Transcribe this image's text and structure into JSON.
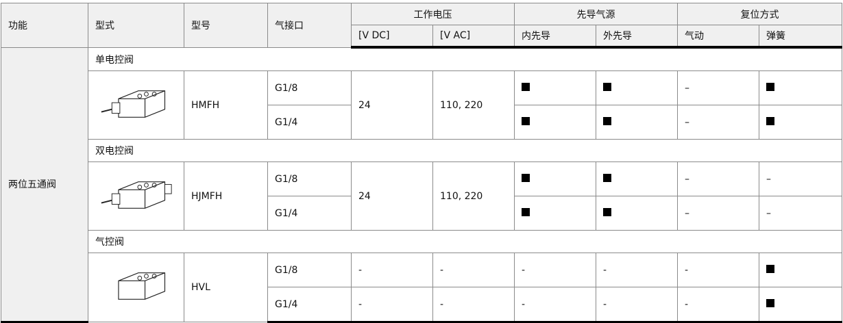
{
  "header": {
    "function": "功能",
    "type": "型式",
    "model": "型号",
    "port": "气接口",
    "voltage": "工作电压",
    "vdc": "[V DC]",
    "vac": "[V AC]",
    "pilot": "先导气源",
    "pilot_int": "内先导",
    "pilot_ext": "外先导",
    "reset": "复位方式",
    "reset_air": "气动",
    "reset_spring": "弹簧"
  },
  "function_value": "两位五通阀",
  "sections": [
    {
      "title": "单电控阀",
      "image": "single-solenoid-valve",
      "model": "HMFH",
      "vdc": "24",
      "vac": "110, 220",
      "rows": [
        {
          "port": "G1/8",
          "int": "■",
          "ext": "■",
          "air": "–",
          "spring": "■"
        },
        {
          "port": "G1/4",
          "int": "■",
          "ext": "■",
          "air": "–",
          "spring": "■"
        }
      ]
    },
    {
      "title": "双电控阀",
      "image": "double-solenoid-valve",
      "model": "HJMFH",
      "vdc": "24",
      "vac": "110, 220",
      "rows": [
        {
          "port": "G1/8",
          "int": "■",
          "ext": "■",
          "air": "–",
          "spring": "–"
        },
        {
          "port": "G1/4",
          "int": "■",
          "ext": "■",
          "air": "–",
          "spring": "–"
        }
      ]
    },
    {
      "title": "气控阀",
      "image": "pneumatic-valve",
      "model": "HVL",
      "rows": [
        {
          "port": "G1/8",
          "vdc": "-",
          "vac": "-",
          "int": "-",
          "ext": "-",
          "air": "-",
          "spring": "■"
        },
        {
          "port": "G1/4",
          "vdc": "-",
          "vac": "-",
          "int": "-",
          "ext": "-",
          "air": "-",
          "spring": "■"
        }
      ]
    }
  ]
}
